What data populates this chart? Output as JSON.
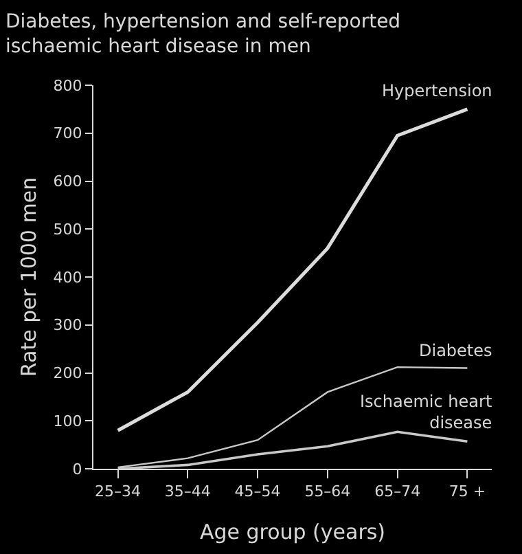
{
  "chart_data": {
    "type": "line",
    "title": "Diabetes, hypertension and self-reported\nischaemic heart disease in men",
    "xlabel": "Age group (years)",
    "ylabel": "Rate per 1000 men",
    "categories": [
      "25–34",
      "35–44",
      "45–54",
      "55–64",
      "65–74",
      "75 +"
    ],
    "series": [
      {
        "name": "Hypertension",
        "color": "#dcdcdc",
        "values": [
          80,
          160,
          305,
          460,
          695,
          750
        ]
      },
      {
        "name": "Diabetes",
        "color": "#c8c8c8",
        "values": [
          3,
          22,
          60,
          160,
          212,
          210
        ]
      },
      {
        "name": "Ischaemic heart disease",
        "color": "#c8c8c8",
        "values": [
          0,
          8,
          30,
          47,
          77,
          57
        ]
      }
    ],
    "ylim": [
      0,
      800
    ],
    "yticks": [
      0,
      100,
      200,
      300,
      400,
      500,
      600,
      700,
      800
    ],
    "grid": false,
    "legend": false,
    "marker": "none",
    "line_style": "solid"
  }
}
